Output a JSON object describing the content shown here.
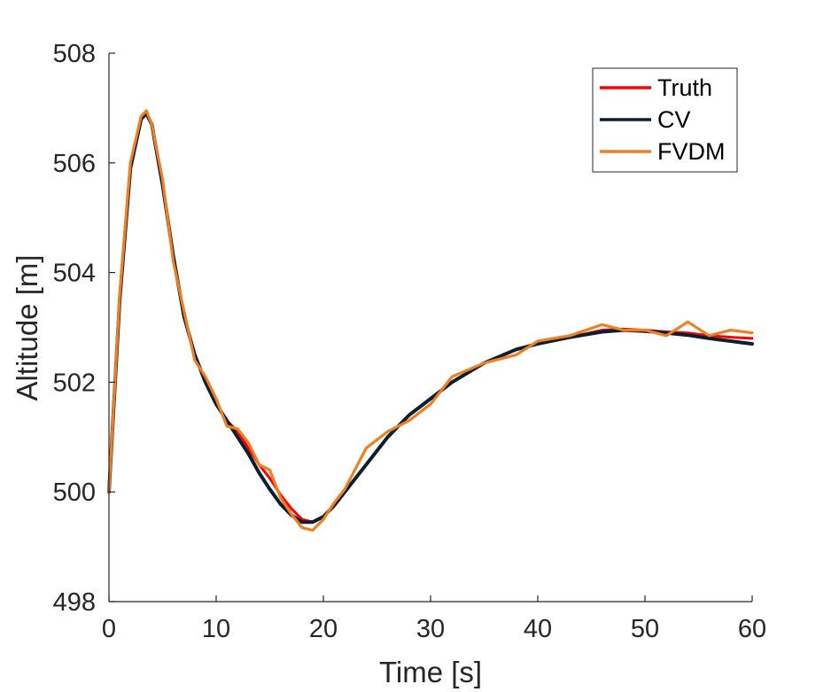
{
  "chart_data": {
    "type": "line",
    "xlabel": "Time [s]",
    "ylabel": "Altitude [m]",
    "xlim": [
      0,
      60
    ],
    "ylim": [
      498,
      508
    ],
    "x_ticks": [
      0,
      10,
      20,
      30,
      40,
      50,
      60
    ],
    "y_ticks": [
      498,
      500,
      502,
      504,
      506,
      508
    ],
    "x_tick_labels": [
      "0",
      "10",
      "20",
      "30",
      "40",
      "50",
      "60"
    ],
    "y_tick_labels": [
      "498",
      "500",
      "502",
      "504",
      "506",
      "508"
    ],
    "grid": false,
    "legend_position": "top-right",
    "series": [
      {
        "name": "Truth",
        "color": "#ff0000",
        "x": [
          0,
          1,
          2,
          3,
          3.5,
          4,
          5,
          6,
          7,
          8,
          9,
          10,
          11,
          12,
          13,
          14,
          15,
          16,
          17,
          18,
          19,
          20,
          21,
          22,
          24,
          26,
          28,
          30,
          32,
          35,
          38,
          40,
          43,
          46,
          48,
          50,
          52,
          54,
          56,
          58,
          60
        ],
        "y": [
          500.0,
          503.5,
          505.9,
          506.8,
          506.9,
          506.7,
          505.6,
          504.3,
          503.2,
          502.5,
          502.0,
          501.6,
          501.3,
          501.1,
          500.8,
          500.5,
          500.25,
          499.95,
          499.7,
          499.5,
          499.45,
          499.55,
          499.75,
          500.0,
          500.5,
          501.0,
          501.4,
          501.7,
          502.0,
          502.35,
          502.6,
          502.7,
          502.82,
          502.95,
          502.97,
          502.95,
          502.92,
          502.9,
          502.85,
          502.82,
          502.8
        ]
      },
      {
        "name": "CV",
        "color": "#0b1f33",
        "x": [
          0,
          1,
          2,
          3,
          3.5,
          4,
          5,
          6,
          7,
          8,
          9,
          10,
          11,
          12,
          13,
          14,
          15,
          16,
          17,
          18,
          19,
          20,
          21,
          22,
          24,
          26,
          28,
          30,
          32,
          35,
          38,
          40,
          43,
          46,
          48,
          50,
          52,
          54,
          56,
          58,
          60
        ],
        "y": [
          500.0,
          503.5,
          505.9,
          506.8,
          506.9,
          506.7,
          505.6,
          504.3,
          503.2,
          502.5,
          502.0,
          501.6,
          501.3,
          501.0,
          500.7,
          500.35,
          500.05,
          499.78,
          499.58,
          499.45,
          499.45,
          499.55,
          499.75,
          500.0,
          500.5,
          501.0,
          501.4,
          501.7,
          502.0,
          502.35,
          502.6,
          502.7,
          502.82,
          502.92,
          502.95,
          502.93,
          502.9,
          502.86,
          502.8,
          502.75,
          502.7
        ]
      },
      {
        "name": "FVDM",
        "color": "#f07f24",
        "x": [
          0,
          1,
          2,
          3,
          3.5,
          4,
          5,
          6,
          7,
          8,
          9,
          10,
          11,
          12,
          13,
          14,
          15,
          16,
          17,
          18,
          19,
          20,
          21,
          22,
          24,
          26,
          28,
          30,
          32,
          35,
          38,
          40,
          43,
          46,
          48,
          50,
          52,
          54,
          56,
          58,
          60
        ],
        "y": [
          500.0,
          503.6,
          506.0,
          506.85,
          506.95,
          506.7,
          505.7,
          504.2,
          503.3,
          502.4,
          502.1,
          501.7,
          501.2,
          501.15,
          500.9,
          500.5,
          500.4,
          499.9,
          499.6,
          499.35,
          499.3,
          499.5,
          499.8,
          500.05,
          500.8,
          501.1,
          501.3,
          501.6,
          502.1,
          502.35,
          502.5,
          502.75,
          502.85,
          503.05,
          502.95,
          502.95,
          502.85,
          503.1,
          502.85,
          502.95,
          502.9
        ]
      }
    ]
  }
}
